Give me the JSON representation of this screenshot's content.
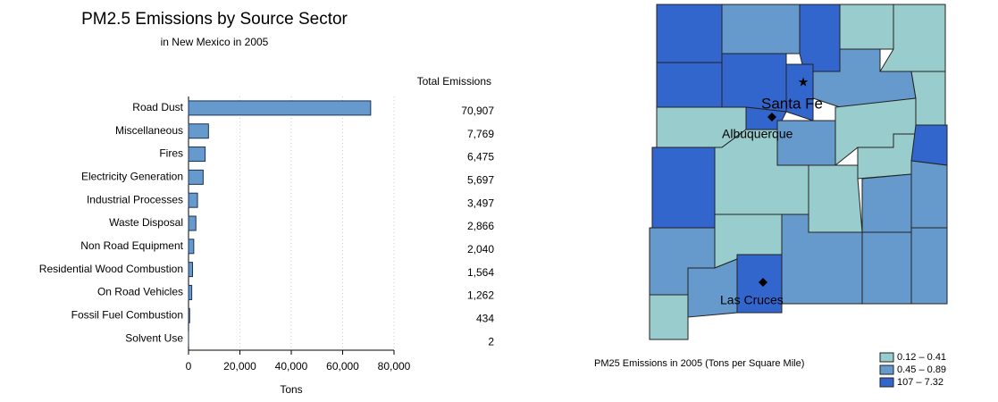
{
  "chart_data": {
    "type": "bar",
    "title": "PM2.5 Emissions by Source Sector",
    "subtitle": "in New Mexico in 2005",
    "value_header": "Total Emissions",
    "categories": [
      "Road Dust",
      "Miscellaneous",
      "Fires",
      "Electricity Generation",
      "Industrial Processes",
      "Waste Disposal",
      "Non Road Equipment",
      "Residential Wood Combustion",
      "On Road Vehicles",
      "Fossil Fuel Combustion",
      "Solvent Use"
    ],
    "values": [
      70907,
      7769,
      6475,
      5697,
      3497,
      2866,
      2040,
      1564,
      1262,
      434,
      2
    ],
    "value_labels": [
      "70,907",
      "7,769",
      "6,475",
      "5,697",
      "3,497",
      "2,866",
      "2,040",
      "1,564",
      "1,262",
      "434",
      "2"
    ],
    "color": "#6699cc",
    "xlim": [
      0,
      80000
    ],
    "xticks": [
      0,
      {
        "value": 20000,
        "label": "20,000"
      },
      {
        "value": 40000,
        "label": "40,000"
      },
      {
        "value": 60000,
        "label": "60,000"
      },
      {
        "value": 80000,
        "label": "80,000"
      }
    ],
    "xlabel": "Tons",
    "grid": true
  },
  "map": {
    "cities": [
      "Santa Fe",
      "Albuquerque",
      "Las Cruces"
    ],
    "legend": {
      "title": "PM25 Emissions in 2005 (Tons per Square Mile)",
      "classes": [
        {
          "label": "0.12 – 0.41",
          "color": "#99cccc"
        },
        {
          "label": "0.45 – 0.89",
          "color": "#6699cc"
        },
        {
          "label": "107 – 7.32",
          "color": "#3366cc"
        }
      ]
    }
  }
}
